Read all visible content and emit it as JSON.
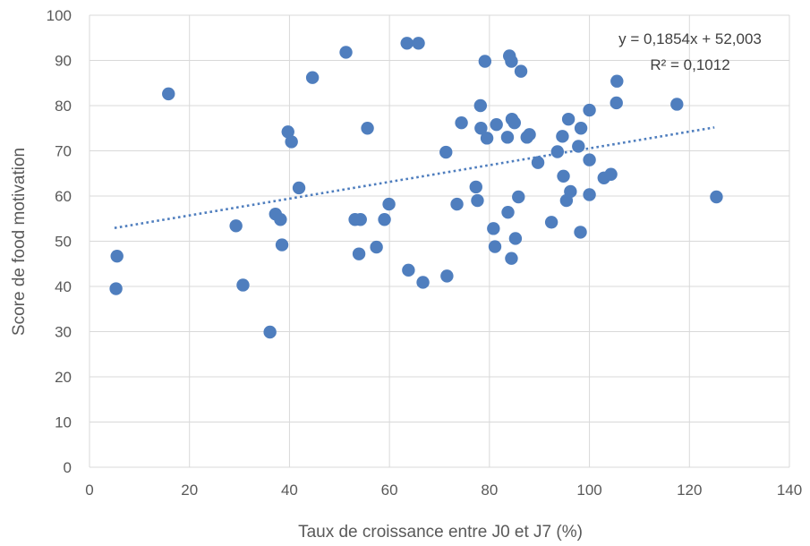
{
  "chart_data": {
    "type": "scatter",
    "title": "",
    "xlabel": "Taux de croissance entre J0 et J7 (%)",
    "ylabel": "Score de food motivation",
    "xlim": [
      0,
      140
    ],
    "ylim": [
      0,
      100
    ],
    "xticks": [
      0,
      20,
      40,
      60,
      80,
      100,
      120,
      140
    ],
    "yticks": [
      0,
      10,
      20,
      30,
      40,
      50,
      60,
      70,
      80,
      90,
      100
    ],
    "grid": true,
    "legend": "none",
    "colors": {
      "points": "#4f7ebe",
      "trendline": "#4f7ebe",
      "grid": "#d9d9d9",
      "text": "#595959"
    },
    "series": [
      {
        "points": [
          [
            5.5,
            46.7
          ],
          [
            5.3,
            39.5
          ],
          [
            15.8,
            82.6
          ],
          [
            29.3,
            53.4
          ],
          [
            30.7,
            40.3
          ],
          [
            36.1,
            29.9
          ],
          [
            37.2,
            56.0
          ],
          [
            38.2,
            54.8
          ],
          [
            38.5,
            49.2
          ],
          [
            39.7,
            74.2
          ],
          [
            40.4,
            72.0
          ],
          [
            41.9,
            61.8
          ],
          [
            44.6,
            86.2
          ],
          [
            51.3,
            91.8
          ],
          [
            53.1,
            54.8
          ],
          [
            53.9,
            47.2
          ],
          [
            54.2,
            54.8
          ],
          [
            55.6,
            75.0
          ],
          [
            57.4,
            48.7
          ],
          [
            59.0,
            54.8
          ],
          [
            59.9,
            58.2
          ],
          [
            63.5,
            93.8
          ],
          [
            63.8,
            43.6
          ],
          [
            65.8,
            93.8
          ],
          [
            66.7,
            40.9
          ],
          [
            71.3,
            69.7
          ],
          [
            71.5,
            42.3
          ],
          [
            73.5,
            58.2
          ],
          [
            74.4,
            76.2
          ],
          [
            77.3,
            62.0
          ],
          [
            77.6,
            59.0
          ],
          [
            78.2,
            80.0
          ],
          [
            78.3,
            75.0
          ],
          [
            79.1,
            89.8
          ],
          [
            79.5,
            72.8
          ],
          [
            80.8,
            52.8
          ],
          [
            81.1,
            48.8
          ],
          [
            81.4,
            75.8
          ],
          [
            83.6,
            73.0
          ],
          [
            83.7,
            56.4
          ],
          [
            84.0,
            91.0
          ],
          [
            84.4,
            89.8
          ],
          [
            84.5,
            77.0
          ],
          [
            84.4,
            46.2
          ],
          [
            85.0,
            76.2
          ],
          [
            85.2,
            50.6
          ],
          [
            85.8,
            59.8
          ],
          [
            86.3,
            87.6
          ],
          [
            87.5,
            73.0
          ],
          [
            88.0,
            73.6
          ],
          [
            89.7,
            67.4
          ],
          [
            92.4,
            54.2
          ],
          [
            93.6,
            69.8
          ],
          [
            94.6,
            73.2
          ],
          [
            94.8,
            64.4
          ],
          [
            95.4,
            59.0
          ],
          [
            95.8,
            77.0
          ],
          [
            96.2,
            61.0
          ],
          [
            97.8,
            71.0
          ],
          [
            98.2,
            52.0
          ],
          [
            98.3,
            75.0
          ],
          [
            100.0,
            79.0
          ],
          [
            100.0,
            68.0
          ],
          [
            100.0,
            60.3
          ],
          [
            102.9,
            64.0
          ],
          [
            104.3,
            64.8
          ],
          [
            105.4,
            80.6
          ],
          [
            105.5,
            85.4
          ],
          [
            117.5,
            80.3
          ],
          [
            125.4,
            59.8
          ]
        ]
      }
    ],
    "trendline": {
      "type": "linear",
      "style": "dotted",
      "slope": 0.1854,
      "intercept": 52.003,
      "x_range": [
        5,
        125
      ],
      "equation_label": "y = 0,1854x + 52,003",
      "r2_label": "R² = 0,1012"
    }
  }
}
